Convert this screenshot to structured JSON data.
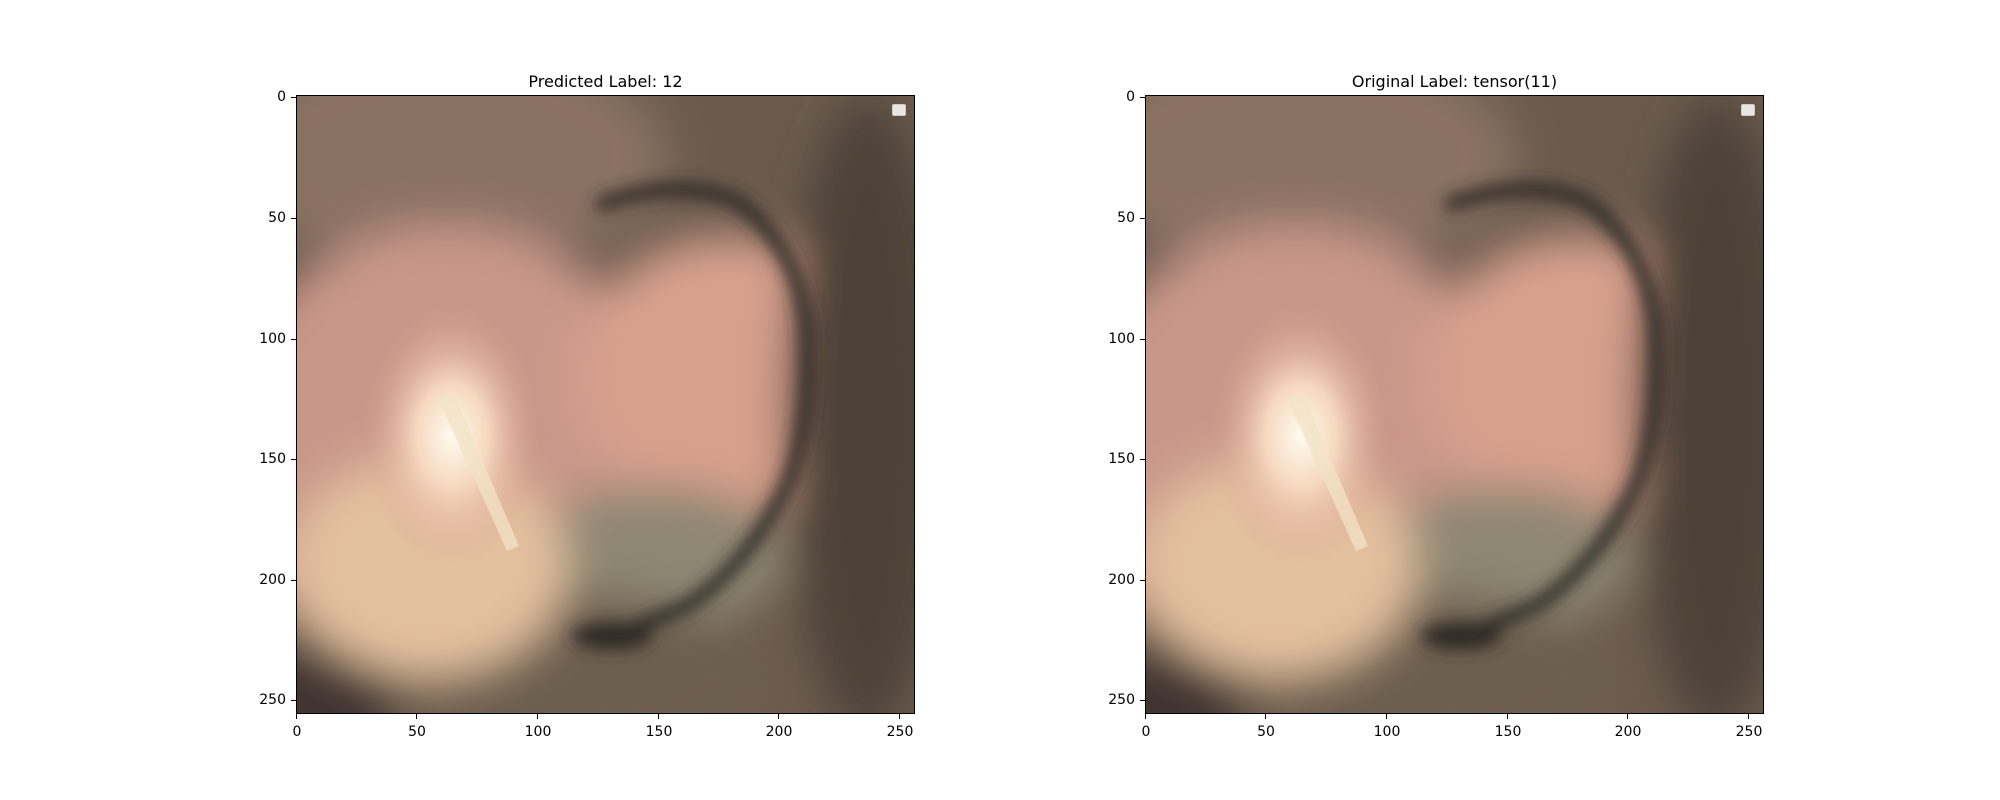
{
  "figure": {
    "panels": [
      {
        "title": "Predicted Label: 12"
      },
      {
        "title": "Original Label: tensor(11)"
      }
    ],
    "x_ticks": [
      "0",
      "50",
      "100",
      "150",
      "200",
      "250"
    ],
    "y_ticks": [
      "0",
      "50",
      "100",
      "150",
      "200",
      "250"
    ],
    "image_extent": [
      0,
      256
    ],
    "legend": "empty-box-top-right"
  },
  "colors": {
    "background": "#ffffff",
    "tissue_pink": "#d9a08e",
    "tissue_dark": "#4a4036",
    "highlight": "#fff6e0"
  }
}
